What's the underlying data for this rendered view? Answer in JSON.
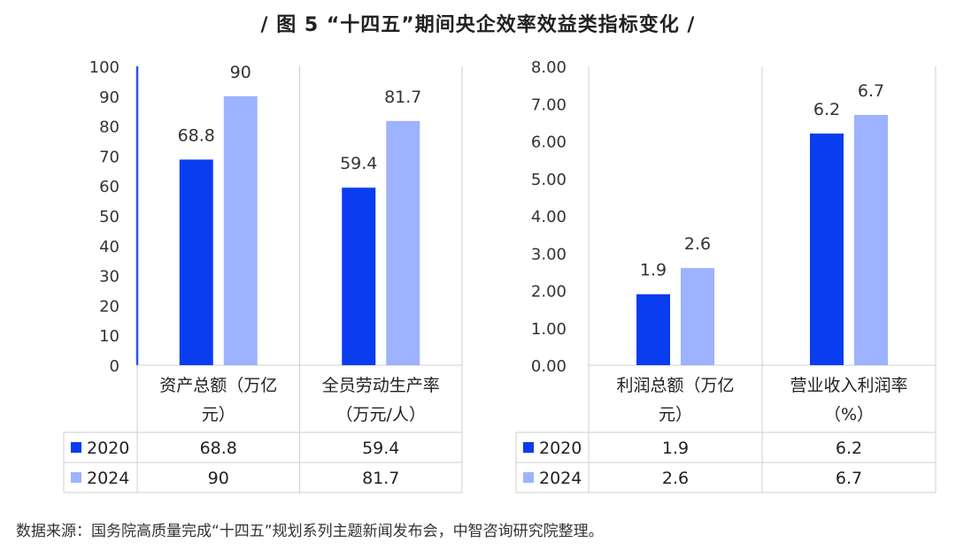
{
  "title": "/ 图 5 “十四五”期间央企效率效益类指标变化 /",
  "source": "数据来源：国务院高质量完成“十四五”规划系列主题新闻发布会，中智咨询研究院整理。",
  "colors": {
    "2020": "#0a3cf0",
    "2024": "#9db3ff",
    "grid": "#cfcfcf",
    "axis": "#2a55e6"
  },
  "chart_data": [
    {
      "type": "bar",
      "categories": [
        "资产总额（万亿元）",
        "全员劳动生产率（万元/人）"
      ],
      "category_lines": [
        [
          "资产总额（万亿",
          "元）"
        ],
        [
          "全员劳动生产率",
          "（万元/人）"
        ]
      ],
      "series": [
        {
          "name": "2020",
          "values": [
            68.8,
            59.4
          ]
        },
        {
          "name": "2024",
          "values": [
            90,
            81.7
          ]
        }
      ],
      "ylim": [
        0,
        100
      ],
      "yticks": [
        "100",
        "90",
        "80",
        "70",
        "60",
        "50",
        "40",
        "30",
        "20",
        "10",
        "0"
      ],
      "value_labels": [
        [
          "68.8",
          "59.4"
        ],
        [
          "90",
          "81.7"
        ]
      ]
    },
    {
      "type": "bar",
      "categories": [
        "利润总额（万亿元）",
        "营业收入利润率（%）"
      ],
      "category_lines": [
        [
          "利润总额（万亿",
          "元）"
        ],
        [
          "营业收入利润率",
          "（%）"
        ]
      ],
      "series": [
        {
          "name": "2020",
          "values": [
            1.9,
            6.2
          ]
        },
        {
          "name": "2024",
          "values": [
            2.6,
            6.7
          ]
        }
      ],
      "ylim": [
        0,
        8
      ],
      "yticks": [
        "8.00",
        "7.00",
        "6.00",
        "5.00",
        "4.00",
        "3.00",
        "2.00",
        "1.00",
        "0.00"
      ],
      "value_labels": [
        [
          "1.9",
          "6.2"
        ],
        [
          "2.6",
          "6.7"
        ]
      ]
    }
  ]
}
